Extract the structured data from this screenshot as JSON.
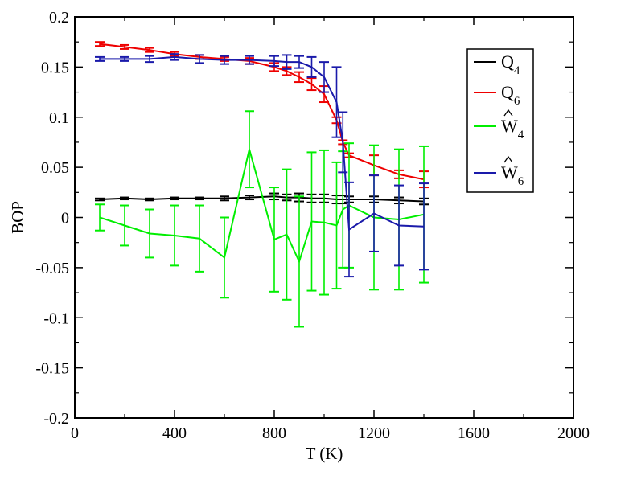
{
  "chart_data": {
    "type": "line",
    "xlabel": "T (K)",
    "ylabel": "BOP",
    "xlim": [
      0,
      2000
    ],
    "ylim": [
      -0.2,
      0.2
    ],
    "x_ticks": [
      0,
      400,
      800,
      1200,
      1600,
      2000
    ],
    "x_tick_labels": [
      "0",
      "400",
      "800",
      "1200",
      "1600",
      "2000"
    ],
    "y_ticks": [
      -0.2,
      -0.15,
      -0.1,
      -0.05,
      0,
      0.05,
      0.1,
      0.15,
      0.2
    ],
    "y_tick_labels": [
      "-0.2",
      "-0.15",
      "-0.1",
      "-0.05",
      "0",
      "0.05",
      "0.1",
      "0.15",
      "0.2"
    ],
    "grid": false,
    "legend_position": "top-right",
    "series": [
      {
        "name": "Q4",
        "legend_main": "Q",
        "legend_sub": "4",
        "hat": false,
        "color": "#000000",
        "x": [
          100,
          200,
          300,
          400,
          500,
          600,
          700,
          800,
          850,
          900,
          950,
          1000,
          1050,
          1075,
          1100,
          1200,
          1300,
          1400
        ],
        "y": [
          0.018,
          0.019,
          0.018,
          0.019,
          0.019,
          0.019,
          0.02,
          0.021,
          0.02,
          0.02,
          0.019,
          0.019,
          0.018,
          0.018,
          0.018,
          0.018,
          0.017,
          0.016
        ],
        "err": [
          0.001,
          0.001,
          0.001,
          0.001,
          0.001,
          0.002,
          0.002,
          0.003,
          0.003,
          0.004,
          0.004,
          0.004,
          0.004,
          0.004,
          0.003,
          0.003,
          0.003,
          0.003
        ]
      },
      {
        "name": "Q6",
        "legend_main": "Q",
        "legend_sub": "6",
        "hat": false,
        "color": "#ee0000",
        "x": [
          100,
          200,
          300,
          400,
          500,
          600,
          700,
          800,
          850,
          900,
          950,
          1000,
          1050,
          1075,
          1100,
          1200,
          1300,
          1400
        ],
        "y": [
          0.173,
          0.17,
          0.167,
          0.163,
          0.16,
          0.158,
          0.156,
          0.15,
          0.146,
          0.14,
          0.133,
          0.123,
          0.097,
          0.075,
          0.062,
          0.052,
          0.043,
          0.038
        ],
        "err": [
          0.002,
          0.002,
          0.002,
          0.002,
          0.002,
          0.002,
          0.003,
          0.004,
          0.004,
          0.005,
          0.006,
          0.008,
          0.003,
          0.002,
          0.002,
          0.01,
          0.004,
          0.008
        ]
      },
      {
        "name": "W4",
        "legend_main": "W",
        "legend_sub": "4",
        "hat": true,
        "color": "#00ee00",
        "x": [
          100,
          200,
          300,
          400,
          500,
          600,
          700,
          800,
          850,
          900,
          950,
          1000,
          1050,
          1075,
          1100,
          1200,
          1300,
          1400
        ],
        "y": [
          0.0,
          -0.008,
          -0.016,
          -0.018,
          -0.021,
          -0.04,
          0.068,
          -0.022,
          -0.017,
          -0.044,
          -0.004,
          -0.005,
          -0.008,
          0.008,
          0.012,
          0.0,
          -0.002,
          0.003
        ],
        "err": [
          0.013,
          0.02,
          0.024,
          0.03,
          0.033,
          0.04,
          0.038,
          0.052,
          0.065,
          0.065,
          0.069,
          0.072,
          0.063,
          0.058,
          0.062,
          0.072,
          0.07,
          0.068
        ]
      },
      {
        "name": "W6",
        "legend_main": "W",
        "legend_sub": "6",
        "hat": true,
        "color": "#1a1aaa",
        "x": [
          100,
          200,
          300,
          400,
          500,
          600,
          700,
          800,
          850,
          900,
          950,
          1000,
          1050,
          1075,
          1100,
          1200,
          1300,
          1400
        ],
        "y": [
          0.158,
          0.158,
          0.158,
          0.16,
          0.158,
          0.157,
          0.157,
          0.156,
          0.155,
          0.155,
          0.15,
          0.14,
          0.115,
          0.075,
          -0.012,
          0.004,
          -0.008,
          -0.009
        ],
        "err": [
          0.002,
          0.002,
          0.003,
          0.003,
          0.004,
          0.004,
          0.004,
          0.005,
          0.007,
          0.006,
          0.01,
          0.015,
          0.035,
          0.03,
          0.047,
          0.038,
          0.04,
          0.043
        ]
      }
    ]
  }
}
